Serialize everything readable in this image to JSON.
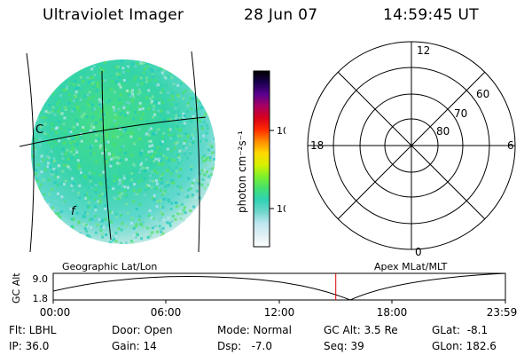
{
  "header": {
    "title": "Ultraviolet Imager",
    "date": "28 Jun 07",
    "time": "14:59:45 UT"
  },
  "globe": {
    "annotations": [
      "C",
      "f"
    ]
  },
  "colorbar": {
    "label": "photon cm⁻²s⁻¹",
    "ticks": [
      "100",
      "10"
    ],
    "stops": [
      "#ffffff",
      "#dfeff2",
      "#bfe6f0",
      "#6fd6cc",
      "#2fd2b4",
      "#44e070",
      "#7df02a",
      "#d8f000",
      "#ffd800",
      "#ff8c00",
      "#ff2a00",
      "#d8001c",
      "#a80060",
      "#5a0090",
      "#1a0050",
      "#000000"
    ]
  },
  "polar": {
    "mlt_labels": {
      "top": "12",
      "left": "18",
      "right": "6",
      "bottom": "0"
    },
    "lat_labels": [
      "60",
      "70",
      "80"
    ]
  },
  "altitude_panel": {
    "y_axis_label": "GC Alt",
    "y_ticks": [
      "9.0",
      "1.8"
    ],
    "left_label": "Geographic Lat/Lon",
    "right_label": "Apex MLat/MLT",
    "x_ticks": [
      "00:00",
      "06:00",
      "12:00",
      "18:00",
      "23:59"
    ],
    "current_time_fraction": 0.6249
  },
  "info": {
    "flt": "Flt: LBHL",
    "ip": "IP: 36.0",
    "door": "Door: Open",
    "gain": "Gain: 14",
    "mode": "Mode: Normal",
    "dsp": "Dsp:   -7.0",
    "gc_alt": "GC Alt: 3.5 Re",
    "seq": "Seq: 39",
    "glat": "GLat:  -8.1",
    "glon": "GLon: 182.6"
  }
}
